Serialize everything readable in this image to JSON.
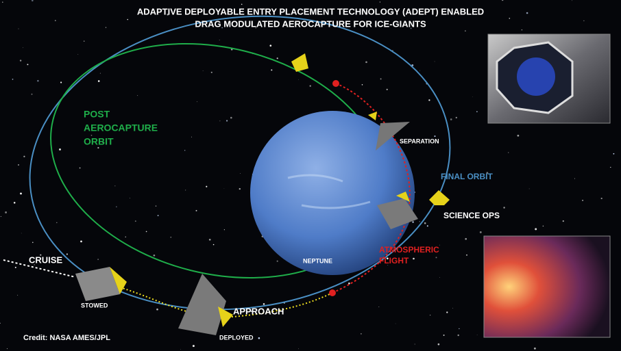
{
  "title": [
    "ADAPTIVE DEPLOYABLE ENTRY PLACEMENT TECHNOLOGY (ADEPT) ENABLED",
    "DRAG MODULATED AEROCAPTURE FOR ICE-GIANTS"
  ],
  "labels": {
    "post_aerocapture_orbit": [
      "POST",
      "AEROCAPTURE",
      "ORBIT"
    ],
    "separation": "SEPARATION",
    "final_orbit": "FINAL ORBIT",
    "science_ops": "SCIENCE OPS",
    "atmospheric_flight": [
      "ATMOSPHERIC",
      "FLIGHT"
    ],
    "neptune": "NEPTUNE",
    "cruise": "CRUISE",
    "stowed": "STOWED",
    "approach": "APPROACH",
    "deployed": "DEPLOYED",
    "credit": "Credit: NASA AMES/JPL"
  }
}
